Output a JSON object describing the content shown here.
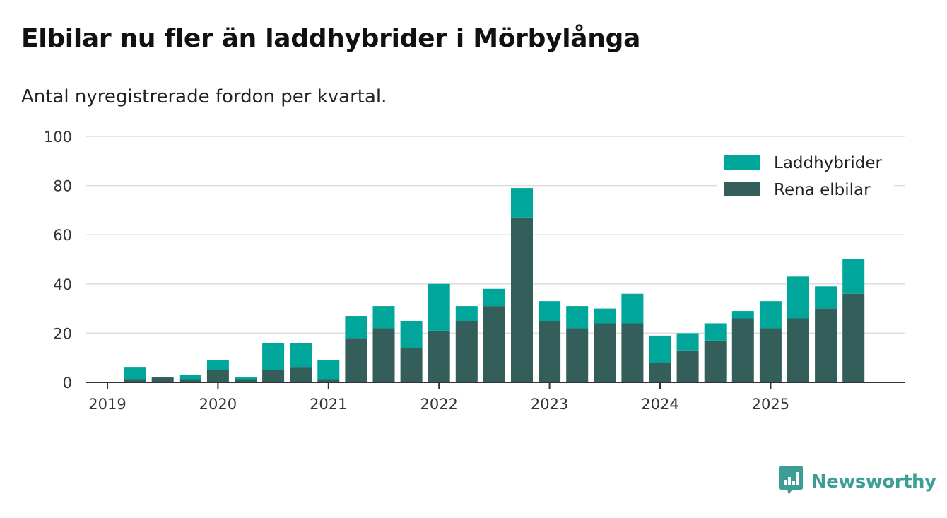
{
  "title": "Elbilar nu fler än laddhybrider i Mörbylånga",
  "subtitle": "Antal nyregistrerade fordon per kvartal.",
  "brand": {
    "name": "Newsworthy",
    "color": "#3d9e96",
    "icon": "newsworthy-logo-icon"
  },
  "chart_data": {
    "type": "bar",
    "stacked": true,
    "categories": [
      "2019 Q1",
      "2019 Q2",
      "2019 Q3",
      "2019 Q4",
      "2020 Q1",
      "2020 Q2",
      "2020 Q3",
      "2020 Q4",
      "2021 Q1",
      "2021 Q2",
      "2021 Q3",
      "2021 Q4",
      "2022 Q1",
      "2022 Q2",
      "2022 Q3",
      "2022 Q4",
      "2023 Q1",
      "2023 Q2",
      "2023 Q3",
      "2023 Q4",
      "2024 Q1",
      "2024 Q2",
      "2024 Q3",
      "2024 Q4",
      "2025 Q1",
      "2025 Q2",
      "2025 Q3",
      "2025 Q4"
    ],
    "series": [
      {
        "name": "Rena elbilar",
        "color": "#335e5a",
        "values": [
          0,
          1,
          2,
          1,
          5,
          1,
          5,
          6,
          1,
          18,
          22,
          14,
          21,
          25,
          31,
          67,
          25,
          22,
          24,
          24,
          8,
          13,
          17,
          26,
          22,
          26,
          30,
          36
        ]
      },
      {
        "name": "Laddhybrider",
        "color": "#00a69a",
        "values": [
          0,
          5,
          0,
          2,
          4,
          1,
          11,
          10,
          8,
          9,
          9,
          11,
          19,
          6,
          7,
          12,
          8,
          9,
          6,
          12,
          11,
          7,
          7,
          3,
          11,
          17,
          9,
          14
        ]
      }
    ],
    "x_tick_labels": [
      "2019",
      "2020",
      "2021",
      "2022",
      "2023",
      "2024",
      "2025"
    ],
    "y_ticks": [
      0,
      20,
      40,
      60,
      80,
      100
    ],
    "ylim": [
      0,
      100
    ],
    "grid": true,
    "legend_position": "top-right"
  }
}
